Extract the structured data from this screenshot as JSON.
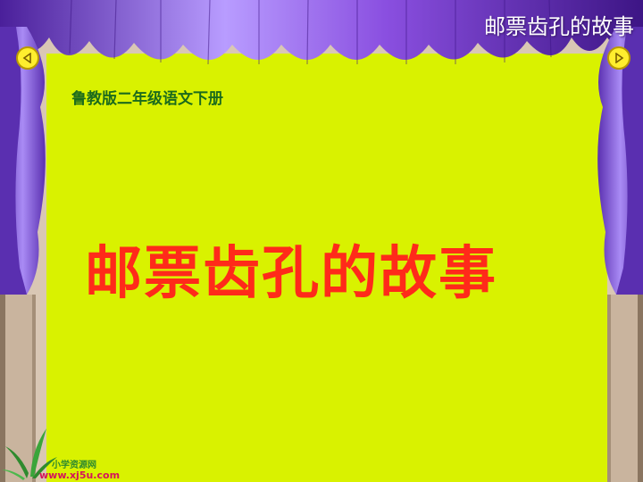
{
  "header": {
    "title": "邮票齿孔的故事"
  },
  "slide": {
    "subtitle": "鲁教版二年级语文下册",
    "main_title": "邮票齿孔的故事"
  },
  "nav": {
    "prev_icon": "triangle-left-icon",
    "next_icon": "triangle-right-icon"
  },
  "logo": {
    "name": "小学资源网",
    "url": "www.xj5u.com"
  },
  "colors": {
    "screen": "#d9f200",
    "curtain": "#8a4fe0",
    "curtain_dark": "#4a1f9a",
    "title_red": "#ff2a1a",
    "subtitle_green": "#1c6b1c"
  }
}
